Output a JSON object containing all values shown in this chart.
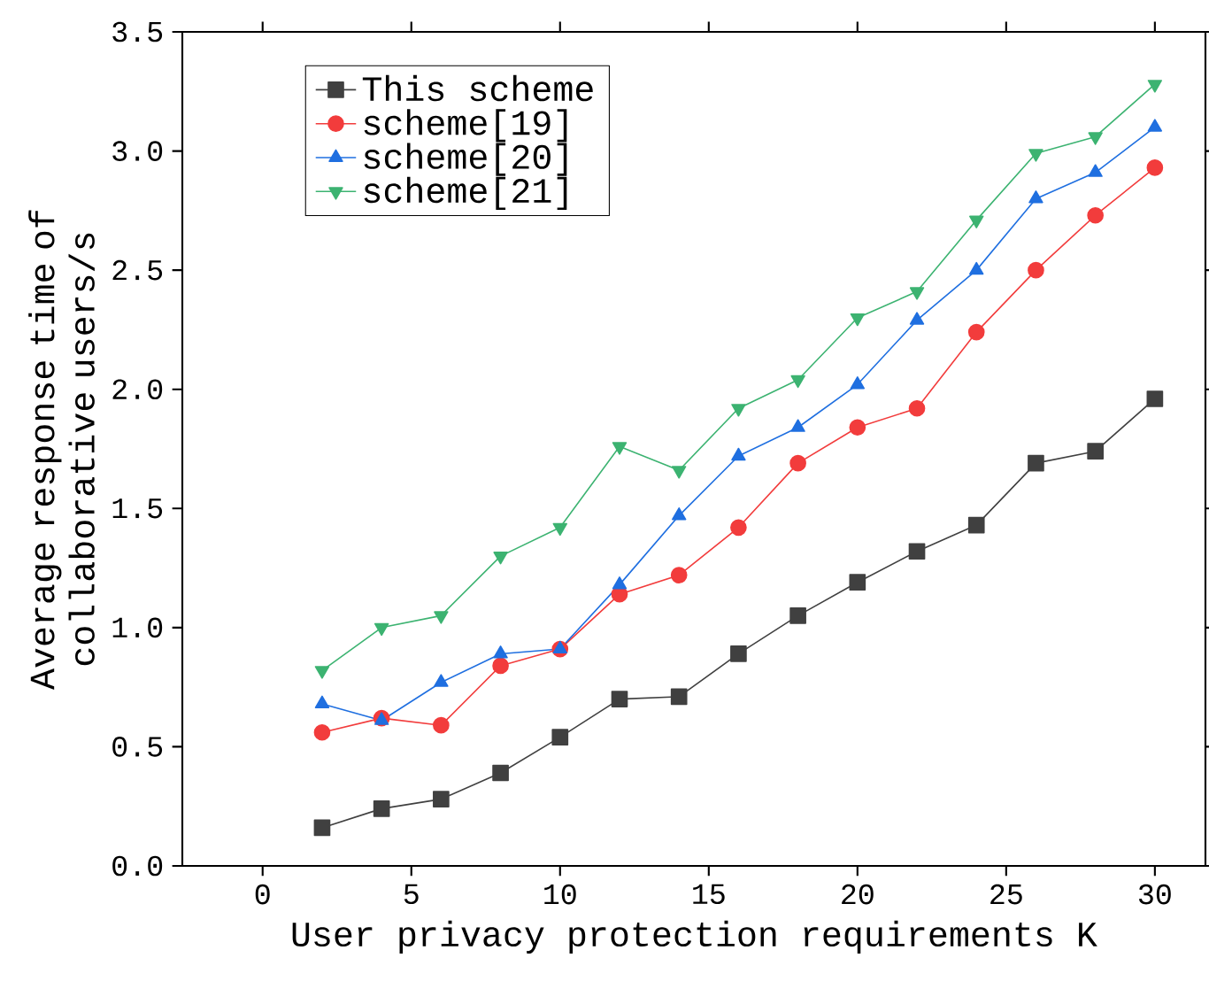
{
  "chart_data": {
    "type": "line",
    "xlabel": "User privacy protection requirements K",
    "ylabel": "Average response time of collaborative users/s",
    "x": [
      2,
      4,
      6,
      8,
      10,
      12,
      14,
      16,
      18,
      20,
      22,
      24,
      26,
      28,
      30
    ],
    "series": [
      {
        "name": "This scheme",
        "color": "#404040",
        "marker": "square",
        "values": [
          0.16,
          0.24,
          0.28,
          0.39,
          0.54,
          0.7,
          0.71,
          0.89,
          1.05,
          1.19,
          1.32,
          1.43,
          1.69,
          1.74,
          1.96
        ]
      },
      {
        "name": "scheme[19]",
        "color": "#f23c3c",
        "marker": "circle",
        "values": [
          0.56,
          0.62,
          0.59,
          0.84,
          0.91,
          1.14,
          1.22,
          1.42,
          1.69,
          1.84,
          1.92,
          2.24,
          2.5,
          2.73,
          2.93
        ]
      },
      {
        "name": "scheme[20]",
        "color": "#1f6fe0",
        "marker": "triangle",
        "values": [
          0.68,
          0.61,
          0.77,
          0.89,
          0.91,
          1.18,
          1.47,
          1.72,
          1.84,
          2.02,
          2.29,
          2.5,
          2.8,
          2.91,
          3.1
        ]
      },
      {
        "name": "scheme[21]",
        "color": "#3cb371",
        "marker": "triangle-down",
        "values": [
          0.82,
          1.0,
          1.05,
          1.3,
          1.42,
          1.76,
          1.66,
          1.92,
          2.04,
          2.3,
          2.41,
          2.71,
          2.99,
          3.06,
          3.28
        ]
      }
    ],
    "xlim": [
      -2.7,
      31.7
    ],
    "ylim": [
      0,
      3.5
    ],
    "xticks": [
      0,
      5,
      10,
      15,
      20,
      25,
      30
    ],
    "yticks": [
      {
        "value": 0,
        "label": "0.0"
      },
      {
        "value": 0.5,
        "label": "0.5"
      },
      {
        "value": 1,
        "label": "1.0"
      },
      {
        "value": 1.5,
        "label": "1.5"
      },
      {
        "value": 2,
        "label": "2.0"
      },
      {
        "value": 2.5,
        "label": "2.5"
      },
      {
        "value": 3,
        "label": "3.0"
      },
      {
        "value": 3.5,
        "label": "3.5"
      }
    ],
    "legend": "top left",
    "line_style": "solid"
  }
}
